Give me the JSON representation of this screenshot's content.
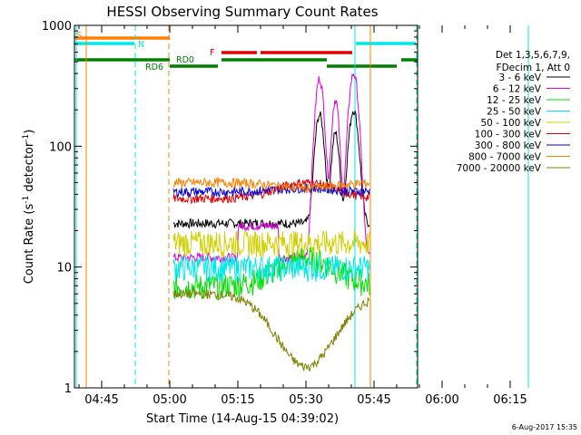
{
  "chart_data": {
    "type": "line",
    "title": "HESSI Observing Summary Count Rates",
    "xlabel": "Start Time (14-Aug-15 04:39:02)",
    "ylabel_main": "Count Rate (s",
    "ylabel_sup": "-1",
    "ylabel_mid": " detector",
    "ylabel_sup2": "-1",
    "ylabel_end": ")",
    "y_scale": "log",
    "ylim": [
      1,
      1000
    ],
    "xlim_minutes_after_0439": [
      0,
      100
    ],
    "x_ticks": [
      {
        "label": "04:45",
        "minute": 6
      },
      {
        "label": "05:00",
        "minute": 21
      },
      {
        "label": "05:15",
        "minute": 36
      },
      {
        "label": "05:30",
        "minute": 51
      },
      {
        "label": "05:45",
        "minute": 66
      },
      {
        "label": "06:00",
        "minute": 81
      },
      {
        "label": "06:15",
        "minute": 96
      }
    ],
    "y_ticks": [
      {
        "label": "1",
        "value": 1
      },
      {
        "label": "10",
        "value": 10
      },
      {
        "label": "100",
        "value": 100
      },
      {
        "label": "1000",
        "value": 1000
      }
    ],
    "legend_header": [
      "Det 1,3,5,6,7,9,",
      "FDecim 1, Att 0"
    ],
    "legend_placement": "right",
    "flag_labels": {
      "S": "S",
      "N": "N",
      "F": "F",
      "RD0": "RD0",
      "RD6": "RD6"
    },
    "series": [
      {
        "name": "3 - 6 keV",
        "color": "#000000",
        "base": 23,
        "peak": 200
      },
      {
        "name": "6 - 12 keV",
        "color": "#e000e0",
        "base": 12,
        "peak": 400
      },
      {
        "name": "12 - 25 keV",
        "color": "#00e000",
        "base": 7,
        "peak": 12
      },
      {
        "name": "25 - 50 keV",
        "color": "#00e8e8",
        "base": 10,
        "peak": 10
      },
      {
        "name": "50 - 100 keV",
        "color": "#d0d000",
        "base": 16,
        "peak": 16
      },
      {
        "name": "100 - 300 keV",
        "color": "#e00000",
        "base": 37,
        "peak": 50
      },
      {
        "name": "300 - 800 keV",
        "color": "#0000e0",
        "base": 42,
        "peak": 45
      },
      {
        "name": "800 - 7000 keV",
        "color": "#ff8000",
        "base": 50,
        "peak": 45
      },
      {
        "name": "7000 - 20000 keV",
        "color": "#808000",
        "base": 6,
        "peak": 1.5
      }
    ],
    "footer_date": "6-Aug-2017 15:35"
  }
}
